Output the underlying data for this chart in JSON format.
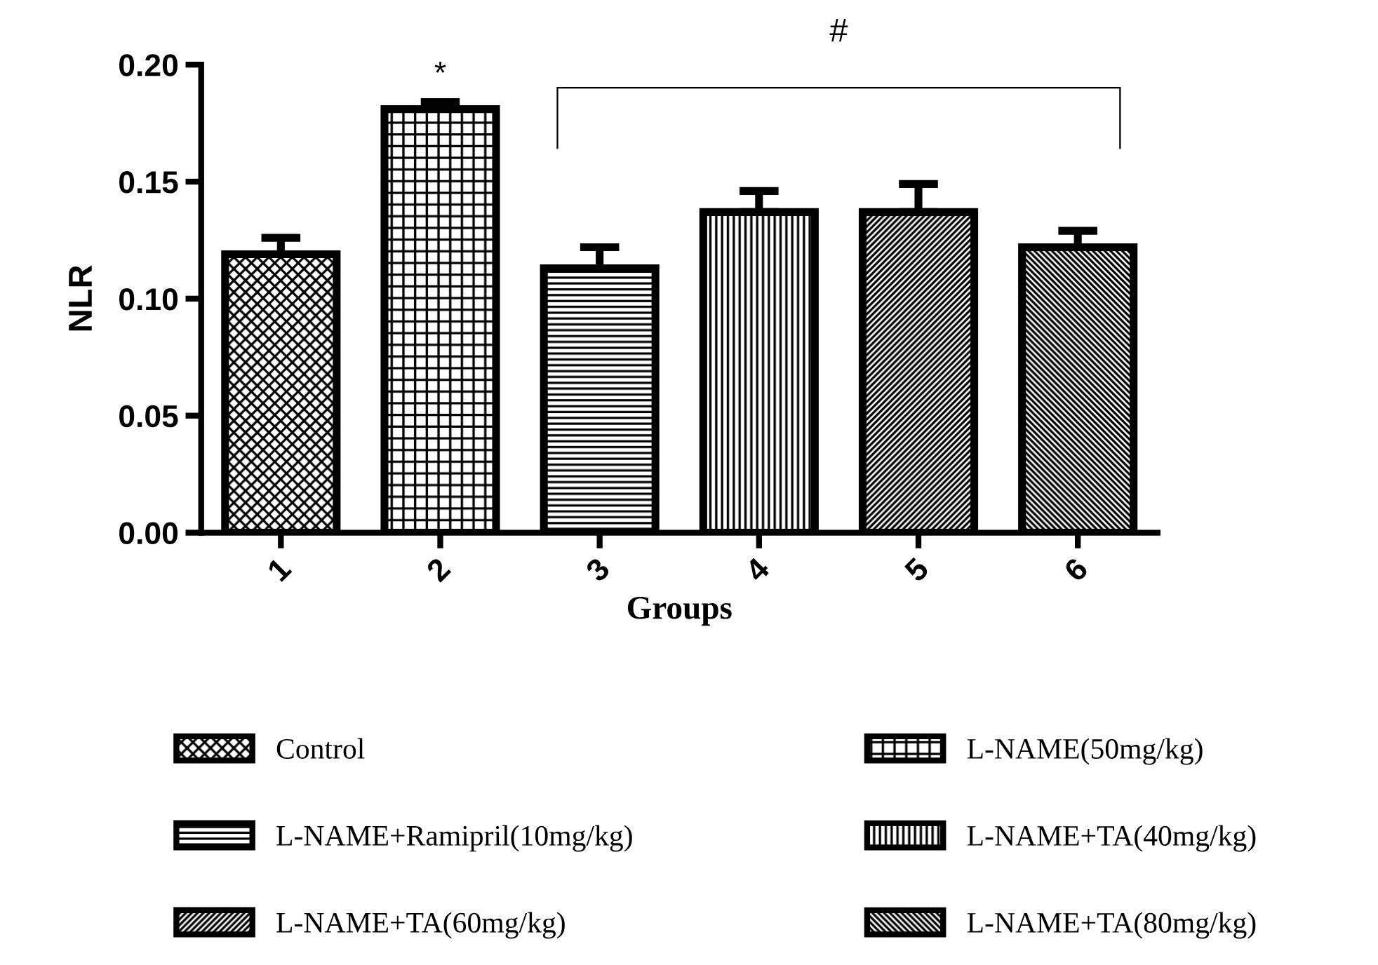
{
  "chart_data": {
    "type": "bar",
    "xlabel": "Groups",
    "ylabel": "NLR",
    "categories": [
      "1",
      "2",
      "3",
      "4",
      "5",
      "6"
    ],
    "series": [
      {
        "name": "Control",
        "color": "#000000",
        "values": [
          0.119,
          null,
          null,
          null,
          null,
          null
        ],
        "errors": [
          0.007,
          null,
          null,
          null,
          null,
          null
        ]
      },
      {
        "name": "L-NAME(50mg/kg)",
        "color": "#000000",
        "values": [
          null,
          0.181,
          null,
          null,
          null,
          null
        ],
        "errors": [
          null,
          0.003,
          null,
          null,
          null,
          null
        ]
      },
      {
        "name": "L-NAME+Ramipril(10mg/kg)",
        "color": "#000000",
        "values": [
          null,
          null,
          0.113,
          null,
          null,
          null
        ],
        "errors": [
          null,
          null,
          0.009,
          null,
          null,
          null
        ]
      },
      {
        "name": "L-NAME+TA(40mg/kg)",
        "color": "#000000",
        "values": [
          null,
          null,
          null,
          0.137,
          null,
          null
        ],
        "errors": [
          null,
          null,
          null,
          0.009,
          null,
          null
        ]
      },
      {
        "name": "L-NAME+TA(60mg/kg)",
        "color": "#000000",
        "values": [
          null,
          null,
          null,
          null,
          0.137,
          null
        ],
        "errors": [
          null,
          null,
          null,
          null,
          0.012,
          null
        ]
      },
      {
        "name": "L-NAME+TA(80mg/kg)",
        "color": "#000000",
        "values": [
          null,
          null,
          null,
          null,
          null,
          0.122
        ],
        "errors": [
          null,
          null,
          null,
          null,
          null,
          0.007
        ]
      }
    ],
    "ylim": [
      0,
      0.2
    ],
    "yticks": [
      {
        "value": 0,
        "label": "0.00"
      },
      {
        "value": 0.05,
        "label": "0.05"
      },
      {
        "value": 0.1,
        "label": "0.10"
      },
      {
        "value": 0.15,
        "label": "0.15"
      },
      {
        "value": 0.2,
        "label": "0.20"
      }
    ],
    "annotations": [
      "*",
      "#"
    ],
    "legend": "bottom",
    "grid": false
  }
}
